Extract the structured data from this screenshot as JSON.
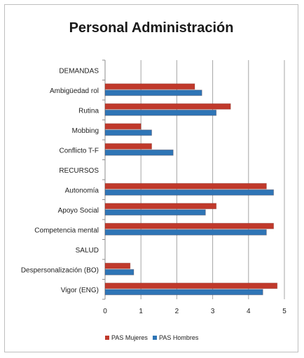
{
  "chart_data": {
    "type": "bar",
    "orientation": "horizontal",
    "title": "Personal Administración",
    "categories": [
      "DEMANDAS",
      "Ambigüedad rol",
      "Rutina",
      "Mobbing",
      "Conflicto T-F",
      "RECURSOS",
      "Autonomía",
      "Apoyo Social",
      "Competencia mental",
      "SALUD",
      "Despersonalización (BO)",
      "Vigor (ENG)"
    ],
    "series": [
      {
        "name": "PAS Mujeres",
        "color": "#c0392b",
        "values": [
          null,
          2.5,
          3.5,
          1.0,
          1.3,
          null,
          4.5,
          3.1,
          4.7,
          null,
          0.7,
          4.8
        ]
      },
      {
        "name": "PAS Hombres",
        "color": "#2e75b6",
        "values": [
          null,
          2.7,
          3.1,
          1.3,
          1.9,
          null,
          4.7,
          2.8,
          4.5,
          null,
          0.8,
          4.4
        ]
      }
    ],
    "xlim": [
      0,
      5
    ],
    "xticks": [
      "0",
      "1",
      "2",
      "3",
      "4",
      "5"
    ],
    "grid": true,
    "legend_position": "bottom"
  }
}
